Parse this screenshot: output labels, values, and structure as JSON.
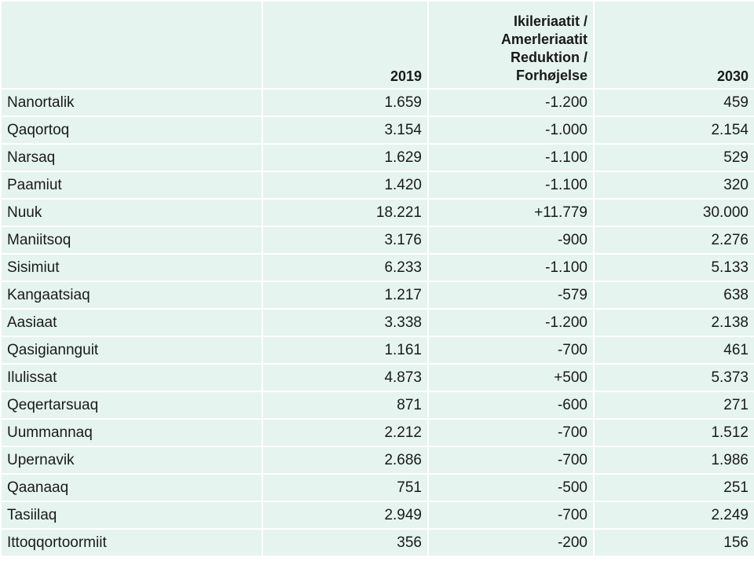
{
  "table": {
    "headers": {
      "municipality": "",
      "year_2019": "2019",
      "change_lines": [
        "Ikileriaatit /",
        "Amerleriaatit",
        "Reduktion /",
        "Forhøjelse"
      ],
      "year_2030": "2030"
    },
    "rows": [
      {
        "name": "Nanortalik",
        "y2019": "1.659",
        "change": "-1.200",
        "y2030": "459"
      },
      {
        "name": "Qaqortoq",
        "y2019": "3.154",
        "change": "-1.000",
        "y2030": "2.154"
      },
      {
        "name": "Narsaq",
        "y2019": "1.629",
        "change": "-1.100",
        "y2030": "529"
      },
      {
        "name": "Paamiut",
        "y2019": "1.420",
        "change": "-1.100",
        "y2030": "320"
      },
      {
        "name": "Nuuk",
        "y2019": "18.221",
        "change": "+11.779",
        "y2030": "30.000"
      },
      {
        "name": "Maniitsoq",
        "y2019": "3.176",
        "change": "-900",
        "y2030": "2.276"
      },
      {
        "name": "Sisimiut",
        "y2019": "6.233",
        "change": "-1.100",
        "y2030": "5.133"
      },
      {
        "name": "Kangaatsiaq",
        "y2019": "1.217",
        "change": "-579",
        "y2030": "638"
      },
      {
        "name": "Aasiaat",
        "y2019": "3.338",
        "change": "-1.200",
        "y2030": "2.138"
      },
      {
        "name": "Qasigiannguit",
        "y2019": "1.161",
        "change": "-700",
        "y2030": "461"
      },
      {
        "name": "Ilulissat",
        "y2019": "4.873",
        "change": "+500",
        "y2030": "5.373"
      },
      {
        "name": "Qeqertarsuaq",
        "y2019": "871",
        "change": "-600",
        "y2030": "271"
      },
      {
        "name": "Uummannaq",
        "y2019": "2.212",
        "change": "-700",
        "y2030": "1.512"
      },
      {
        "name": "Upernavik",
        "y2019": "2.686",
        "change": "-700",
        "y2030": "1.986"
      },
      {
        "name": "Qaanaaq",
        "y2019": "751",
        "change": "-500",
        "y2030": "251"
      },
      {
        "name": "Tasiilaq",
        "y2019": "2.949",
        "change": "-700",
        "y2030": "2.249"
      },
      {
        "name": "Ittoqqortoormiit",
        "y2019": "356",
        "change": "-200",
        "y2030": "156"
      }
    ]
  },
  "colors": {
    "cell_background": "#e6f4ef",
    "grid_lines": "#ffffff",
    "text": "#1a1a1a"
  }
}
